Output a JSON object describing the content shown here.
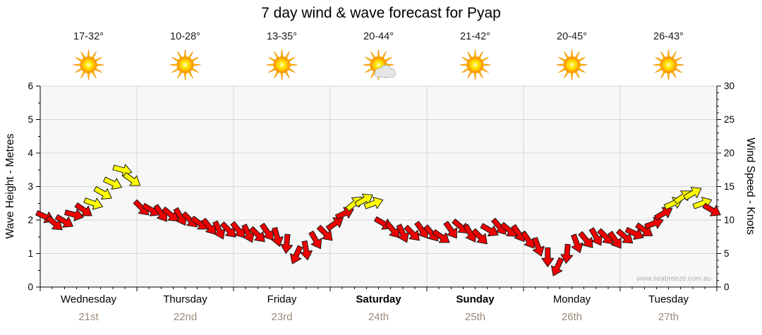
{
  "title": "7 day wind & wave forecast for Pyap",
  "watermark": "www.seabreeze.com.au",
  "axes": {
    "left_title": "Wave Height - Metres",
    "right_title": "Wind Speed - Knots"
  },
  "days": [
    {
      "name": "Wednesday",
      "date": "21st",
      "temp": "17-32°",
      "icon": "sun",
      "weekend": false
    },
    {
      "name": "Thursday",
      "date": "22nd",
      "temp": "10-28°",
      "icon": "sun",
      "weekend": false
    },
    {
      "name": "Friday",
      "date": "23rd",
      "temp": "13-35°",
      "icon": "sun",
      "weekend": false
    },
    {
      "name": "Saturday",
      "date": "24th",
      "temp": "20-44°",
      "icon": "sun-cloud",
      "weekend": true
    },
    {
      "name": "Sunday",
      "date": "25th",
      "temp": "21-42°",
      "icon": "sun",
      "weekend": true
    },
    {
      "name": "Monday",
      "date": "26th",
      "temp": "20-45°",
      "icon": "sun",
      "weekend": false
    },
    {
      "name": "Tuesday",
      "date": "27th",
      "temp": "26-43°",
      "icon": "sun",
      "weekend": false
    }
  ],
  "colors": {
    "arrow_low": "#ee0000",
    "arrow_high": "#ffff00",
    "arrow_outline": "#1a1a1a",
    "plot_bg": "#f7f7f7",
    "grid": "#d6d6d6",
    "axis": "#000000",
    "date_label": "#9a8a7a",
    "watermark": "#b0b0b0"
  },
  "chart_data": {
    "type": "scatter",
    "variant": "wind-direction-arrows",
    "title": "7 day wind & wave forecast for Pyap",
    "categories": [
      "Wednesday 21st",
      "Thursday 22nd",
      "Friday 23rd",
      "Saturday 24th",
      "Sunday 25th",
      "Monday 26th",
      "Tuesday 27th"
    ],
    "temperatures": [
      "17-32°",
      "10-28°",
      "13-35°",
      "20-44°",
      "21-42°",
      "20-45°",
      "26-43°"
    ],
    "weather_icons": [
      "sun",
      "sun",
      "sun",
      "sun-cloud",
      "sun",
      "sun",
      "sun"
    ],
    "points_per_day": 10,
    "yellow_threshold_knots": 12,
    "left_axis": {
      "label": "Wave Height - Metres",
      "range": [
        0,
        6
      ],
      "ticks": [
        0,
        1,
        2,
        3,
        4,
        5,
        6
      ]
    },
    "right_axis": {
      "label": "Wind Speed - Knots",
      "range": [
        0,
        30
      ],
      "ticks": [
        0,
        5,
        10,
        15,
        20,
        25,
        30
      ]
    },
    "grid": true,
    "wind_speed_knots": [
      10.5,
      9.5,
      9.8,
      10.8,
      11.5,
      12.5,
      14,
      15.5,
      17.5,
      16,
      11.8,
      11.5,
      11,
      10.8,
      10.5,
      10,
      9.5,
      9,
      8.5,
      8.5,
      8.5,
      8,
      7.8,
      8.2,
      7.5,
      6.5,
      4.8,
      5.5,
      7,
      8,
      9.5,
      11,
      12.5,
      13,
      12.5,
      9.5,
      8.5,
      8,
      8,
      8.5,
      8,
      7.5,
      8.5,
      9,
      8,
      7.5,
      8.5,
      9,
      8.5,
      8,
      7,
      6,
      4.5,
      3,
      5,
      6.5,
      7,
      7.5,
      7.5,
      7,
      7.5,
      8,
      8.5,
      9.5,
      11,
      12.5,
      13.5,
      14,
      12.5,
      11.5
    ],
    "wind_dir_deg": [
      25,
      40,
      30,
      15,
      35,
      20,
      30,
      25,
      15,
      35,
      45,
      30,
      55,
      40,
      60,
      45,
      35,
      50,
      65,
      45,
      50,
      65,
      45,
      55,
      75,
      95,
      115,
      80,
      60,
      45,
      -35,
      -25,
      -40,
      -30,
      -20,
      30,
      50,
      65,
      45,
      55,
      50,
      35,
      55,
      40,
      60,
      45,
      30,
      50,
      40,
      55,
      55,
      70,
      90,
      115,
      95,
      70,
      50,
      60,
      45,
      55,
      40,
      25,
      35,
      -20,
      -30,
      -25,
      -35,
      -30,
      -20,
      30
    ]
  }
}
